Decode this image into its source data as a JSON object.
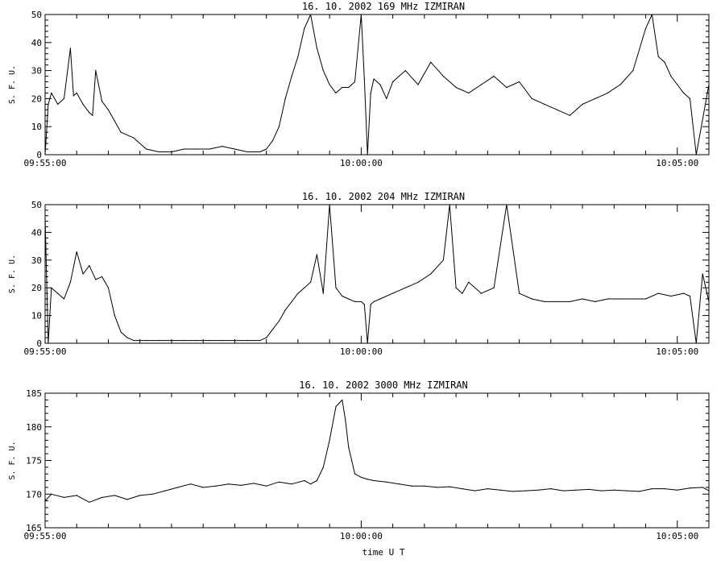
{
  "chart_data": [
    {
      "type": "line",
      "title": "16. 10. 2002   169 MHz   IZMIRAN",
      "ylabel": "S. F. U.",
      "xlabel": "",
      "x_tick_labels": [
        "09:55:00",
        "10:00:00",
        "10:05:00"
      ],
      "y_tick_labels": [
        "0",
        "10",
        "20",
        "30",
        "40",
        "50"
      ],
      "xlim_minutes": [
        0,
        10.5
      ],
      "ylim": [
        0,
        50
      ],
      "series": [
        {
          "x": [
            0.0,
            0.05,
            0.1,
            0.2,
            0.3,
            0.4,
            0.45,
            0.5,
            0.6,
            0.7,
            0.75,
            0.8,
            0.9,
            1.0,
            1.1,
            1.2,
            1.4,
            1.6,
            1.8,
            2.0,
            2.2,
            2.4,
            2.6,
            2.8,
            3.0,
            3.2,
            3.4,
            3.5,
            3.6,
            3.7,
            3.8,
            3.9,
            4.0,
            4.1,
            4.2,
            4.3,
            4.4,
            4.5,
            4.6,
            4.7,
            4.8,
            4.9,
            5.0,
            5.05,
            5.1,
            5.15,
            5.2,
            5.3,
            5.4,
            5.5,
            5.7,
            5.9,
            6.1,
            6.3,
            6.5,
            6.7,
            6.9,
            7.1,
            7.3,
            7.5,
            7.7,
            7.9,
            8.1,
            8.3,
            8.5,
            8.7,
            8.9,
            9.1,
            9.3,
            9.5,
            9.6,
            9.7,
            9.8,
            9.9,
            10.0,
            10.1,
            10.2,
            10.3,
            10.5
          ],
          "y": [
            0,
            18,
            22,
            18,
            20,
            38,
            21,
            22,
            18,
            15,
            14,
            30,
            19,
            16,
            12,
            8,
            6,
            2,
            1,
            1,
            2,
            2,
            2,
            3,
            2,
            1,
            1,
            2,
            5,
            10,
            20,
            28,
            35,
            45,
            50,
            38,
            30,
            25,
            22,
            24,
            24,
            26,
            50,
            27,
            0,
            22,
            27,
            25,
            20,
            26,
            30,
            25,
            33,
            28,
            24,
            22,
            25,
            28,
            24,
            26,
            20,
            18,
            16,
            14,
            18,
            20,
            22,
            25,
            30,
            45,
            50,
            35,
            33,
            28,
            25,
            22,
            20,
            0,
            25
          ]
        }
      ]
    },
    {
      "type": "line",
      "title": "16. 10. 2002   204 MHz   IZMIRAN",
      "ylabel": "S. F. U.",
      "xlabel": "",
      "x_tick_labels": [
        "09:55:00",
        "10:00:00",
        "10:05:00"
      ],
      "y_tick_labels": [
        "0",
        "10",
        "20",
        "30",
        "40",
        "50"
      ],
      "xlim_minutes": [
        0,
        10.5
      ],
      "ylim": [
        0,
        50
      ],
      "series": [
        {
          "x": [
            0.0,
            0.05,
            0.1,
            0.2,
            0.3,
            0.4,
            0.5,
            0.6,
            0.7,
            0.8,
            0.9,
            1.0,
            1.1,
            1.2,
            1.3,
            1.4,
            1.6,
            1.8,
            2.0,
            2.2,
            2.4,
            2.6,
            2.8,
            3.0,
            3.2,
            3.4,
            3.5,
            3.6,
            3.7,
            3.8,
            3.9,
            4.0,
            4.1,
            4.2,
            4.3,
            4.4,
            4.5,
            4.6,
            4.7,
            4.8,
            4.9,
            5.0,
            5.05,
            5.1,
            5.15,
            5.2,
            5.3,
            5.5,
            5.7,
            5.9,
            6.1,
            6.3,
            6.4,
            6.5,
            6.6,
            6.7,
            6.9,
            7.1,
            7.3,
            7.5,
            7.7,
            7.9,
            8.1,
            8.3,
            8.5,
            8.7,
            8.9,
            9.1,
            9.3,
            9.5,
            9.7,
            9.9,
            10.1,
            10.2,
            10.3,
            10.4,
            10.5
          ],
          "y": [
            45,
            0,
            20,
            18,
            16,
            22,
            33,
            25,
            28,
            23,
            24,
            20,
            10,
            4,
            2,
            1,
            1,
            1,
            1,
            1,
            1,
            1,
            1,
            1,
            1,
            1,
            2,
            5,
            8,
            12,
            15,
            18,
            20,
            22,
            32,
            18,
            50,
            20,
            17,
            16,
            15,
            15,
            14,
            0,
            14,
            15,
            16,
            18,
            20,
            22,
            25,
            30,
            50,
            20,
            18,
            22,
            18,
            20,
            50,
            18,
            16,
            15,
            15,
            15,
            16,
            15,
            16,
            16,
            16,
            16,
            18,
            17,
            18,
            17,
            0,
            25,
            15
          ]
        }
      ]
    },
    {
      "type": "line",
      "title": "16. 10. 2002   3000 MHz   IZMIRAN",
      "ylabel": "S. F. U.",
      "xlabel": "time  U T",
      "x_tick_labels": [
        "09:55:00",
        "10:00:00",
        "10:05:00"
      ],
      "y_tick_labels": [
        "165",
        "170",
        "175",
        "180",
        "185"
      ],
      "xlim_minutes": [
        0,
        10.5
      ],
      "ylim": [
        165,
        185
      ],
      "series": [
        {
          "x": [
            0.0,
            0.1,
            0.3,
            0.5,
            0.7,
            0.9,
            1.1,
            1.3,
            1.5,
            1.7,
            1.9,
            2.1,
            2.3,
            2.5,
            2.7,
            2.9,
            3.1,
            3.3,
            3.5,
            3.7,
            3.9,
            4.1,
            4.2,
            4.3,
            4.4,
            4.5,
            4.6,
            4.65,
            4.7,
            4.75,
            4.8,
            4.85,
            4.9,
            5.0,
            5.1,
            5.2,
            5.4,
            5.6,
            5.8,
            6.0,
            6.2,
            6.4,
            6.6,
            6.8,
            7.0,
            7.2,
            7.4,
            7.6,
            7.8,
            8.0,
            8.2,
            8.4,
            8.6,
            8.8,
            9.0,
            9.2,
            9.4,
            9.6,
            9.8,
            10.0,
            10.2,
            10.4,
            10.5
          ],
          "y": [
            169,
            170,
            169.5,
            169.8,
            168.8,
            169.5,
            169.8,
            169.2,
            169.8,
            170,
            170.5,
            171,
            171.5,
            171,
            171.2,
            171.5,
            171.3,
            171.6,
            171.2,
            171.8,
            171.5,
            172,
            171.5,
            172,
            174,
            178,
            183,
            183.5,
            184,
            181,
            177,
            175,
            173,
            172.5,
            172.2,
            172,
            171.8,
            171.5,
            171.2,
            171.2,
            171.0,
            171.1,
            170.8,
            170.5,
            170.8,
            170.6,
            170.4,
            170.5,
            170.6,
            170.8,
            170.5,
            170.6,
            170.7,
            170.5,
            170.6,
            170.5,
            170.4,
            170.8,
            170.8,
            170.6,
            170.9,
            171,
            170.5
          ]
        }
      ]
    }
  ]
}
